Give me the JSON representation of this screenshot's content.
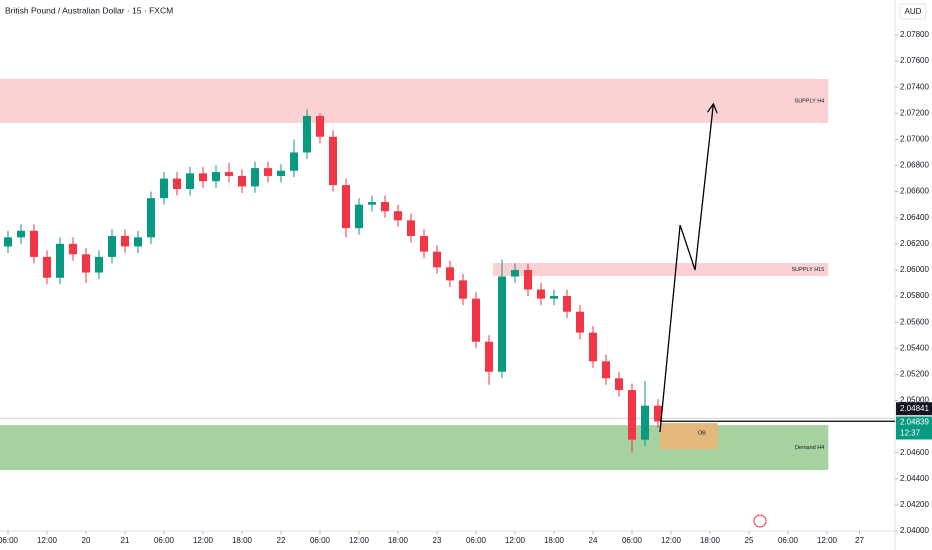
{
  "chart_data": {
    "type": "candlestick",
    "title": "British Pound / Australian Dollar · 15 · FXCM",
    "currency": "AUD",
    "up_color": "#089981",
    "down_color": "#f23645",
    "x": [
      0,
      2,
      4,
      6,
      8,
      10,
      12,
      14,
      16,
      18,
      20,
      22,
      24,
      26,
      28,
      30,
      32,
      34,
      36,
      38,
      40,
      42,
      44,
      46,
      48,
      50,
      52,
      54,
      56,
      58,
      60,
      62,
      64,
      66,
      68,
      70,
      72,
      74,
      76,
      78,
      80,
      82,
      84,
      86,
      88,
      90,
      92,
      94,
      96,
      98,
      100
    ],
    "open": [
      2.0618,
      2.0625,
      2.063,
      2.061,
      2.0594,
      2.062,
      2.0612,
      2.0598,
      2.061,
      2.0626,
      2.0618,
      2.0625,
      2.0655,
      2.067,
      2.0662,
      2.0674,
      2.0668,
      2.0675,
      2.0672,
      2.0664,
      2.0678,
      2.0672,
      2.0676,
      2.069,
      2.0718,
      2.0702,
      2.0665,
      2.0632,
      2.065,
      2.0652,
      2.0645,
      2.0638,
      2.0626,
      2.0614,
      2.0602,
      2.0592,
      2.0578,
      2.0545,
      2.0522,
      2.0595,
      2.06,
      2.0585,
      2.0578,
      2.058,
      2.0568,
      2.0552,
      2.053,
      2.0517,
      2.0508,
      2.047,
      2.0496
    ],
    "high": [
      2.063,
      2.0635,
      2.0635,
      2.0615,
      2.0625,
      2.0625,
      2.0617,
      2.0615,
      2.0631,
      2.0631,
      2.063,
      2.066,
      2.0675,
      2.0675,
      2.0679,
      2.0679,
      2.068,
      2.0682,
      2.0677,
      2.0683,
      2.0683,
      2.0681,
      2.07,
      2.0723,
      2.072,
      2.0707,
      2.067,
      2.0655,
      2.0657,
      2.0657,
      2.065,
      2.0643,
      2.0631,
      2.0619,
      2.0607,
      2.0597,
      2.0583,
      2.055,
      2.0608,
      2.0605,
      2.0605,
      2.059,
      2.0585,
      2.0585,
      2.0573,
      2.0557,
      2.0535,
      2.0522,
      2.0513,
      2.0515,
      2.0501
    ],
    "low": [
      2.0613,
      2.062,
      2.0605,
      2.0589,
      2.0589,
      2.0607,
      2.059,
      2.0593,
      2.0605,
      2.0613,
      2.0613,
      2.062,
      2.065,
      2.0657,
      2.0657,
      2.0663,
      2.0663,
      2.0667,
      2.0659,
      2.0659,
      2.0667,
      2.0667,
      2.0671,
      2.0685,
      2.0697,
      2.066,
      2.0625,
      2.0627,
      2.0645,
      2.064,
      2.0633,
      2.0621,
      2.0609,
      2.0597,
      2.0587,
      2.0573,
      2.054,
      2.0512,
      2.0517,
      2.059,
      2.058,
      2.0573,
      2.0573,
      2.0563,
      2.0547,
      2.0525,
      2.0512,
      2.0503,
      2.046,
      2.0465,
      2.0479
    ],
    "close": [
      2.0625,
      2.063,
      2.061,
      2.0594,
      2.062,
      2.0612,
      2.0598,
      2.061,
      2.0626,
      2.0618,
      2.0625,
      2.0655,
      2.067,
      2.0662,
      2.0674,
      2.0668,
      2.0675,
      2.0672,
      2.0664,
      2.0678,
      2.0672,
      2.0676,
      2.069,
      2.0718,
      2.0702,
      2.0665,
      2.0632,
      2.065,
      2.0652,
      2.0645,
      2.0638,
      2.0626,
      2.0614,
      2.0602,
      2.0592,
      2.0578,
      2.0545,
      2.0522,
      2.0595,
      2.06,
      2.0585,
      2.0578,
      2.058,
      2.0568,
      2.0552,
      2.053,
      2.0517,
      2.0508,
      2.047,
      2.0496,
      2.04839
    ],
    "xlim": [
      -1.23,
      136.46
    ],
    "ylim": [
      2.04,
      2.08068
    ],
    "xticks": [
      {
        "value": 0,
        "label": "06:00"
      },
      {
        "value": 6,
        "label": "12:00"
      },
      {
        "value": 12,
        "label": "20"
      },
      {
        "value": 18,
        "label": "21"
      },
      {
        "value": 24,
        "label": "06:00"
      },
      {
        "value": 30,
        "label": "12:00"
      },
      {
        "value": 36,
        "label": "18:00"
      },
      {
        "value": 42,
        "label": "22"
      },
      {
        "value": 48,
        "label": "06:00"
      },
      {
        "value": 54,
        "label": "12:00"
      },
      {
        "value": 60,
        "label": "18:00"
      },
      {
        "value": 66,
        "label": "23"
      },
      {
        "value": 72,
        "label": "06:00"
      },
      {
        "value": 78,
        "label": "12:00"
      },
      {
        "value": 84,
        "label": "18:00"
      },
      {
        "value": 90,
        "label": "24"
      },
      {
        "value": 96,
        "label": "06:00"
      },
      {
        "value": 102,
        "label": "12:00"
      },
      {
        "value": 108,
        "label": "18:00"
      },
      {
        "value": 114,
        "label": "25"
      },
      {
        "value": 120,
        "label": "06:00"
      },
      {
        "value": 126,
        "label": "12:00"
      },
      {
        "value": 131,
        "label": "27"
      }
    ],
    "yticks": [
      {
        "value": 2.078,
        "label": "2.07800"
      },
      {
        "value": 2.076,
        "label": "2.07600"
      },
      {
        "value": 2.074,
        "label": "2.07400"
      },
      {
        "value": 2.072,
        "label": "2.07200"
      },
      {
        "value": 2.07,
        "label": "2.07000"
      },
      {
        "value": 2.068,
        "label": "2.06800"
      },
      {
        "value": 2.066,
        "label": "2.06600"
      },
      {
        "value": 2.064,
        "label": "2.06400"
      },
      {
        "value": 2.062,
        "label": "2.06200"
      },
      {
        "value": 2.06,
        "label": "2.06000"
      },
      {
        "value": 2.058,
        "label": "2.05800"
      },
      {
        "value": 2.056,
        "label": "2.05600"
      },
      {
        "value": 2.054,
        "label": "2.05400"
      },
      {
        "value": 2.052,
        "label": "2.05200"
      },
      {
        "value": 2.05,
        "label": "2.05000"
      },
      {
        "value": 2.046,
        "label": "2.04600"
      },
      {
        "value": 2.044,
        "label": "2.04400"
      },
      {
        "value": 2.042,
        "label": "2.04200"
      },
      {
        "value": 2.04,
        "label": "2.04000"
      }
    ],
    "zones": [
      {
        "label": "SUPPLY H4",
        "x": [
          -1.23,
          126.2
        ],
        "y": [
          2.07126,
          2.07463
        ],
        "color": "#fbd1d4"
      },
      {
        "label": "SUPPLY H15",
        "x": [
          74.6,
          126.2
        ],
        "y": [
          2.05953,
          2.06053
        ],
        "color": "#fbd1d4"
      },
      {
        "label": "Demand H4",
        "x": [
          -1.23,
          126.2
        ],
        "y": [
          2.04467,
          2.04811
        ],
        "color": "#a5d2a0"
      },
      {
        "label": "OB",
        "x": [
          100.3,
          109.2
        ],
        "y": [
          2.04628,
          2.04827
        ],
        "color": "#e3b87a"
      }
    ],
    "arrow": {
      "x": [
        100.3,
        103.4,
        105.7,
        108.5
      ],
      "y": [
        2.04758,
        2.06344,
        2.06,
        2.07264
      ]
    },
    "line_price": 2.04841,
    "last_price": 2.04839,
    "countdown": "12:37"
  }
}
